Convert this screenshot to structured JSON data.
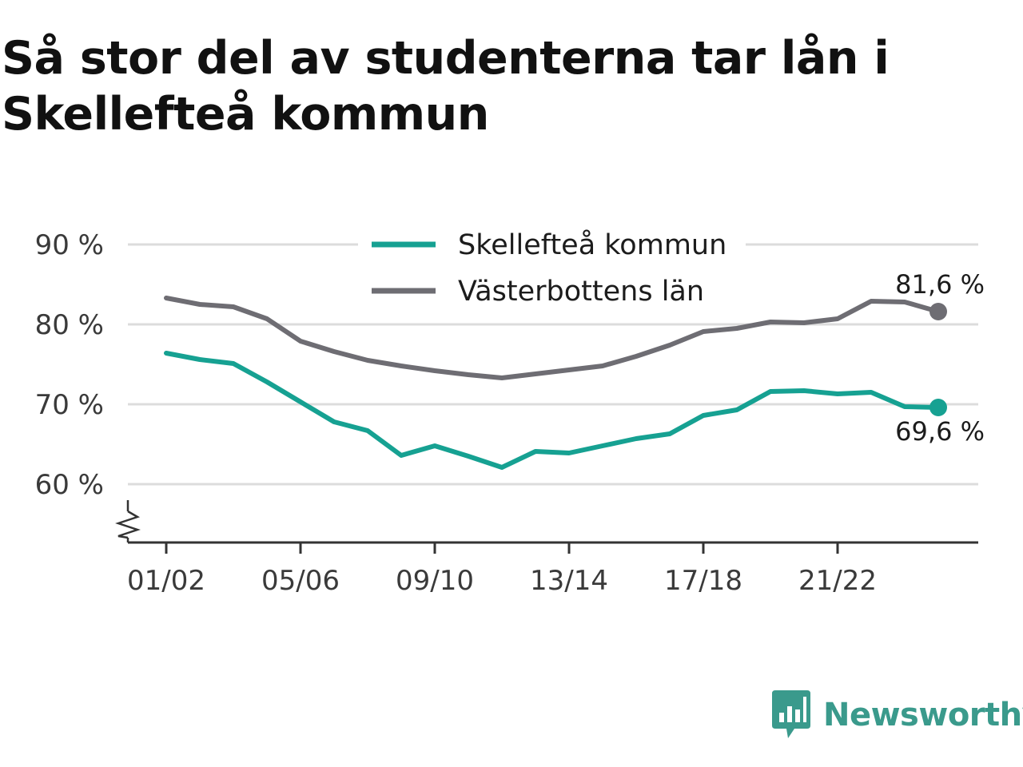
{
  "title": "Så stor del av studenterna tar lån i Skellefteå kommun",
  "brand": {
    "name": "Newsworthy",
    "icon": "bar-chart-speech-bubble-icon",
    "color": "#3a9a8c"
  },
  "chart_data": {
    "type": "line",
    "title": "Så stor del av studenterna tar lån i Skellefteå kommun",
    "xlabel": "",
    "ylabel": "",
    "x": [
      "01/02",
      "02/03",
      "03/04",
      "04/05",
      "05/06",
      "06/07",
      "07/08",
      "08/09",
      "09/10",
      "10/11",
      "11/12",
      "12/13",
      "13/14",
      "14/15",
      "15/16",
      "16/17",
      "17/18",
      "18/19",
      "19/20",
      "20/21",
      "21/22",
      "22/23",
      "23/24",
      "24/25"
    ],
    "x_tick_labels": [
      "01/02",
      "05/06",
      "09/10",
      "13/14",
      "17/18",
      "21/22"
    ],
    "y_ticks": [
      60,
      70,
      80,
      90
    ],
    "y_tick_labels": [
      "60 %",
      "70 %",
      "80 %",
      "90 %"
    ],
    "ylim": [
      53,
      90
    ],
    "axis_break": true,
    "grid": true,
    "legend_position": "top-center",
    "series": [
      {
        "name": "Skellefteå kommun",
        "color": "#16a192",
        "values": [
          76.4,
          75.6,
          75.1,
          72.8,
          70.3,
          67.8,
          66.7,
          63.6,
          64.8,
          63.5,
          62.1,
          64.1,
          63.9,
          64.8,
          65.7,
          66.3,
          68.6,
          69.3,
          71.6,
          71.7,
          71.3,
          71.5,
          69.7,
          69.6
        ],
        "end_label": "69,6 %"
      },
      {
        "name": "Västerbottens län",
        "color": "#6e6d73",
        "values": [
          83.3,
          82.5,
          82.2,
          80.7,
          77.9,
          76.6,
          75.5,
          74.8,
          74.2,
          73.7,
          73.3,
          73.8,
          74.3,
          74.8,
          76.0,
          77.4,
          79.1,
          79.5,
          80.3,
          80.2,
          80.7,
          82.9,
          82.8,
          81.6
        ],
        "end_label": "81,6 %"
      }
    ]
  }
}
